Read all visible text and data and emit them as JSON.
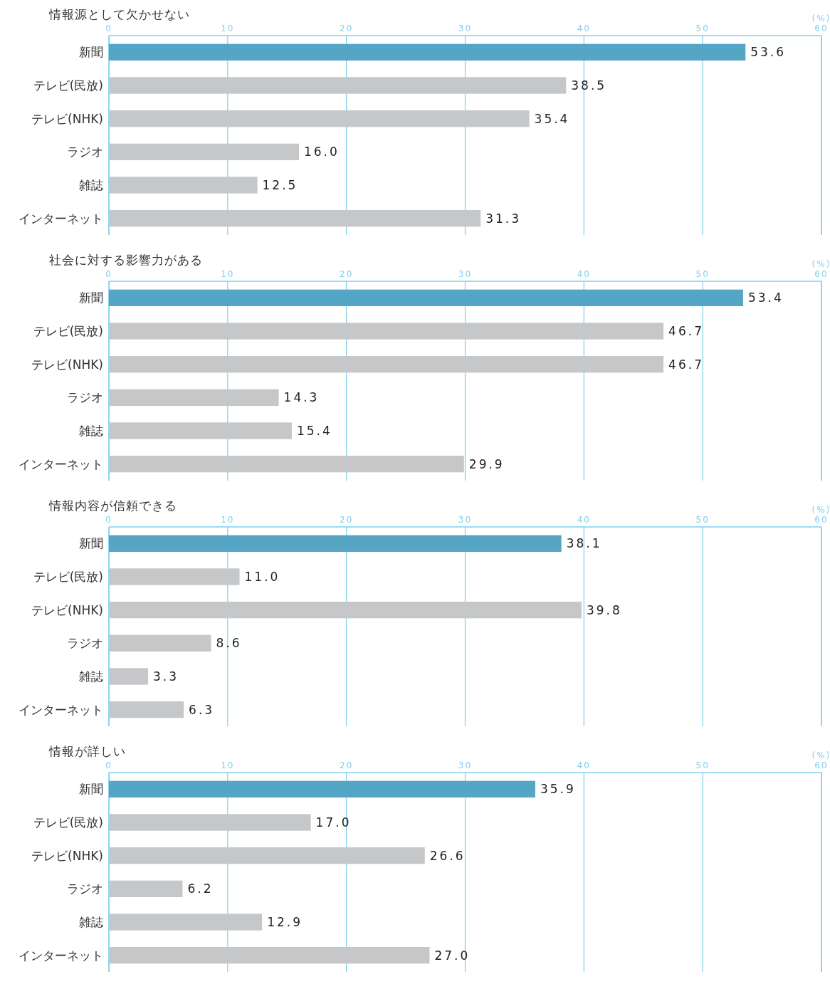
{
  "chart_data": [
    {
      "type": "bar",
      "orientation": "horizontal",
      "title": "情報源として欠かせない",
      "xlabel": "(%)",
      "categories": [
        "新聞",
        "テレビ(民放)",
        "テレビ(NHK)",
        "ラジオ",
        "雑誌",
        "インターネット"
      ],
      "values": [
        53.6,
        38.5,
        35.4,
        16.0,
        12.5,
        31.3
      ],
      "value_labels": [
        "53.6",
        "38.5",
        "35.4",
        "16.0",
        "12.5",
        "31.3"
      ],
      "colors": [
        "#55a5c5",
        "#c6c7c9",
        "#c6c7c9",
        "#c6c7c9",
        "#c6c7c9",
        "#c6c7c9"
      ],
      "xlim": [
        0,
        60
      ],
      "xticks": [
        0,
        10,
        20,
        30,
        40,
        50,
        60
      ],
      "grid": "x"
    },
    {
      "type": "bar",
      "orientation": "horizontal",
      "title": "社会に対する影響力がある",
      "xlabel": "(%)",
      "categories": [
        "新聞",
        "テレビ(民放)",
        "テレビ(NHK)",
        "ラジオ",
        "雑誌",
        "インターネット"
      ],
      "values": [
        53.4,
        46.7,
        46.7,
        14.3,
        15.4,
        29.9
      ],
      "value_labels": [
        "53.4",
        "46.7",
        "46.7",
        "14.3",
        "15.4",
        "29.9"
      ],
      "colors": [
        "#55a5c5",
        "#c6c7c9",
        "#c6c7c9",
        "#c6c7c9",
        "#c6c7c9",
        "#c6c7c9"
      ],
      "xlim": [
        0,
        60
      ],
      "xticks": [
        0,
        10,
        20,
        30,
        40,
        50,
        60
      ],
      "grid": "x"
    },
    {
      "type": "bar",
      "orientation": "horizontal",
      "title": "情報内容が信頼できる",
      "xlabel": "(%)",
      "categories": [
        "新聞",
        "テレビ(民放)",
        "テレビ(NHK)",
        "ラジオ",
        "雑誌",
        "インターネット"
      ],
      "values": [
        38.1,
        11.0,
        39.8,
        8.6,
        3.3,
        6.3
      ],
      "value_labels": [
        "38.1",
        "11.0",
        "39.8",
        "8.6",
        "3.3",
        "6.3"
      ],
      "colors": [
        "#55a5c5",
        "#c6c7c9",
        "#c6c7c9",
        "#c6c7c9",
        "#c6c7c9",
        "#c6c7c9"
      ],
      "xlim": [
        0,
        60
      ],
      "xticks": [
        0,
        10,
        20,
        30,
        40,
        50,
        60
      ],
      "grid": "x"
    },
    {
      "type": "bar",
      "orientation": "horizontal",
      "title": "情報が詳しい",
      "xlabel": "(%)",
      "categories": [
        "新聞",
        "テレビ(民放)",
        "テレビ(NHK)",
        "ラジオ",
        "雑誌",
        "インターネット"
      ],
      "values": [
        35.9,
        17.0,
        26.6,
        6.2,
        12.9,
        27.0
      ],
      "value_labels": [
        "35.9",
        "17.0",
        "26.6",
        "6.2",
        "12.9",
        "27.0"
      ],
      "colors": [
        "#55a5c5",
        "#c6c7c9",
        "#c6c7c9",
        "#c6c7c9",
        "#c6c7c9",
        "#c6c7c9"
      ],
      "xlim": [
        0,
        60
      ],
      "xticks": [
        0,
        10,
        20,
        30,
        40,
        50,
        60
      ],
      "grid": "x"
    }
  ]
}
